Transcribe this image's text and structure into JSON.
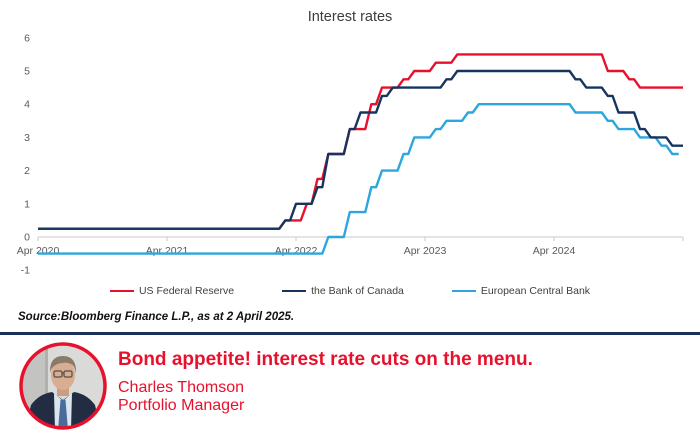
{
  "chart_data": {
    "type": "line",
    "title": "Interest rates",
    "xlabel": "",
    "ylabel": "",
    "ylim": [
      -1,
      6
    ],
    "grid": false,
    "legend_position": "bottom",
    "x_axis": {
      "unit": "months since Apr 2020",
      "tick_months": [
        0,
        12,
        24,
        36,
        48,
        60
      ],
      "tick_labels": [
        "Apr 2020",
        "Apr 2021",
        "Apr 2022",
        "Apr 2023",
        "Apr 2024",
        ""
      ]
    },
    "y_axis": {
      "ticks": [
        -1,
        0,
        1,
        2,
        3,
        4,
        5,
        6
      ]
    },
    "series": [
      {
        "name": "US Federal Reserve",
        "color": "#e8112d",
        "points": [
          [
            0,
            0.25
          ],
          [
            23,
            0.5
          ],
          [
            25,
            1.0
          ],
          [
            26,
            1.75
          ],
          [
            27,
            2.5
          ],
          [
            29,
            3.25
          ],
          [
            31,
            4.0
          ],
          [
            32,
            4.5
          ],
          [
            34,
            4.75
          ],
          [
            35,
            5.0
          ],
          [
            37,
            5.25
          ],
          [
            39,
            5.5
          ],
          [
            53,
            5.0
          ],
          [
            55,
            4.75
          ],
          [
            56,
            4.5
          ],
          [
            60,
            4.5
          ]
        ]
      },
      {
        "name": "the Bank of Canada",
        "color": "#17345f",
        "points": [
          [
            0,
            0.25
          ],
          [
            23,
            0.5
          ],
          [
            24,
            1.0
          ],
          [
            26,
            1.5
          ],
          [
            27,
            2.5
          ],
          [
            29,
            3.25
          ],
          [
            30,
            3.75
          ],
          [
            32,
            4.25
          ],
          [
            33,
            4.5
          ],
          [
            38,
            4.75
          ],
          [
            39,
            5.0
          ],
          [
            50,
            4.75
          ],
          [
            51,
            4.5
          ],
          [
            53,
            4.25
          ],
          [
            54,
            3.75
          ],
          [
            56,
            3.25
          ],
          [
            57,
            3.0
          ],
          [
            59,
            2.75
          ],
          [
            60,
            2.75
          ]
        ]
      },
      {
        "name": "European Central Bank",
        "color": "#2ba6de",
        "points": [
          [
            0,
            -0.5
          ],
          [
            27,
            0.0
          ],
          [
            29,
            0.75
          ],
          [
            31,
            1.5
          ],
          [
            32,
            2.0
          ],
          [
            34,
            2.5
          ],
          [
            35,
            3.0
          ],
          [
            37,
            3.25
          ],
          [
            38,
            3.5
          ],
          [
            40,
            3.75
          ],
          [
            41,
            4.0
          ],
          [
            50,
            3.75
          ],
          [
            53,
            3.5
          ],
          [
            54,
            3.25
          ],
          [
            56,
            3.0
          ],
          [
            58,
            2.75
          ],
          [
            59,
            2.5
          ],
          [
            59.6,
            2.5
          ]
        ]
      }
    ]
  },
  "source_note": "Source:Bloomberg Finance L.P., as at 2 April 2025.",
  "banner": {
    "headline": "Bond appetite! interest rate cuts on the menu.",
    "author_name": "Charles Thomson",
    "author_role": "Portfolio Manager",
    "accent_red": "#e8112d",
    "divider_navy": "#1a2f5a"
  }
}
